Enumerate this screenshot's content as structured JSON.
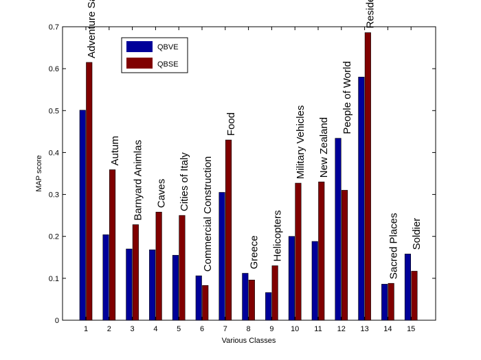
{
  "chart_data": {
    "type": "bar",
    "xlabel": "Various Classes",
    "ylabel": "MAP score",
    "ylim": [
      0,
      0.7
    ],
    "yticks": [
      "0",
      "0.1",
      "0.2",
      "0.3",
      "0.4",
      "0.5",
      "0.6",
      "0.7"
    ],
    "categories": [
      "1",
      "2",
      "3",
      "4",
      "5",
      "6",
      "7",
      "8",
      "9",
      "10",
      "11",
      "12",
      "13",
      "14",
      "15"
    ],
    "class_names": [
      "Adventure Sailing",
      "Autum",
      "Barnyard Animlas",
      "Caves",
      "Cities of Italy",
      "Commercial Construction",
      "Food",
      "Greece",
      "Helicopters",
      "Military Vehicles",
      "New Zealand",
      "People of World",
      "Residential Interiors",
      "Sacred Places",
      "Soldier"
    ],
    "series": [
      {
        "name": "QBVE",
        "color": "#000099",
        "values": [
          0.501,
          0.204,
          0.17,
          0.168,
          0.155,
          0.106,
          0.305,
          0.112,
          0.066,
          0.2,
          0.188,
          0.434,
          0.58,
          0.086,
          0.158
        ]
      },
      {
        "name": "QBSE",
        "color": "#800000",
        "values": [
          0.615,
          0.359,
          0.228,
          0.258,
          0.25,
          0.083,
          0.43,
          0.096,
          0.13,
          0.327,
          0.33,
          0.31,
          0.686,
          0.088,
          0.117
        ]
      }
    ],
    "grid": false,
    "legend_position": "top-left"
  }
}
